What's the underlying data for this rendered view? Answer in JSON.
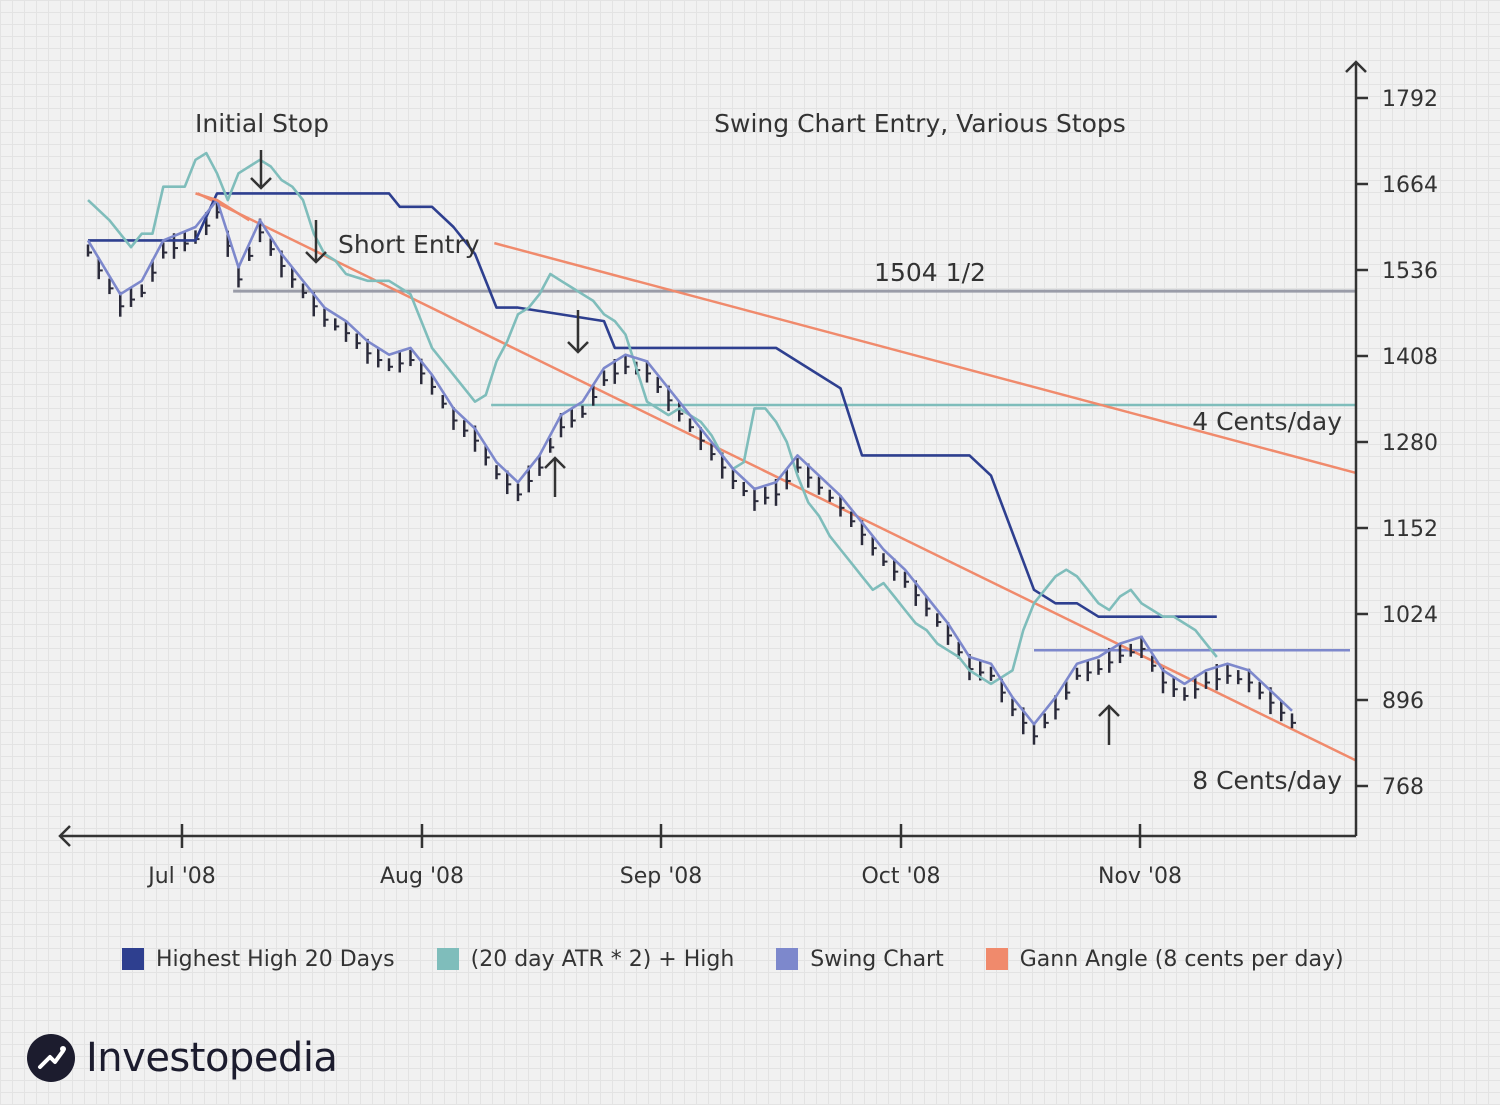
{
  "colors": {
    "highest_high": "#2e3f8f",
    "atr": "#7fbdbb",
    "swing": "#7d88cc",
    "gann": "#f08a6c",
    "price_bar": "#2a2a3a",
    "axis": "#333333",
    "reference_line": "#9a9ca8"
  },
  "chart_data": {
    "type": "line",
    "title": "Swing Chart Entry, Various Stops",
    "xlabel": "",
    "ylabel": "",
    "x_ticks": [
      "Jul '08",
      "Aug '08",
      "Sep '08",
      "Oct '08",
      "Nov '08"
    ],
    "y_ticks": [
      1792,
      1664,
      1536,
      1408,
      1280,
      1152,
      1024,
      896,
      768
    ],
    "ylim": [
      708,
      1860
    ],
    "x_unit": "trading days from start of plotted range",
    "legend_position": "bottom",
    "grid": true,
    "series": [
      {
        "name": "Highest High 20 Days",
        "color_key": "highest_high",
        "points": [
          [
            0,
            1580
          ],
          [
            10,
            1580
          ],
          [
            12,
            1650
          ],
          [
            28,
            1650
          ],
          [
            29,
            1630
          ],
          [
            32,
            1630
          ],
          [
            34,
            1600
          ],
          [
            36,
            1560
          ],
          [
            38,
            1480
          ],
          [
            40,
            1480
          ],
          [
            48,
            1460
          ],
          [
            49,
            1420
          ],
          [
            64,
            1420
          ],
          [
            66,
            1400
          ],
          [
            70,
            1360
          ],
          [
            72,
            1260
          ],
          [
            82,
            1260
          ],
          [
            84,
            1230
          ],
          [
            88,
            1060
          ],
          [
            90,
            1040
          ],
          [
            92,
            1040
          ],
          [
            94,
            1020
          ],
          [
            96,
            1020
          ],
          [
            105,
            1020
          ]
        ]
      },
      {
        "name": "(20 day ATR * 2) + High",
        "color_key": "atr",
        "points": [
          [
            0,
            1640
          ],
          [
            2,
            1610
          ],
          [
            4,
            1570
          ],
          [
            5,
            1590
          ],
          [
            6,
            1590
          ],
          [
            7,
            1660
          ],
          [
            9,
            1660
          ],
          [
            10,
            1700
          ],
          [
            11,
            1710
          ],
          [
            12,
            1680
          ],
          [
            13,
            1640
          ],
          [
            14,
            1680
          ],
          [
            16,
            1700
          ],
          [
            17,
            1690
          ],
          [
            18,
            1670
          ],
          [
            19,
            1660
          ],
          [
            20,
            1640
          ],
          [
            21,
            1590
          ],
          [
            22,
            1560
          ],
          [
            23,
            1550
          ],
          [
            24,
            1530
          ],
          [
            26,
            1520
          ],
          [
            28,
            1520
          ],
          [
            30,
            1500
          ],
          [
            31,
            1460
          ],
          [
            32,
            1420
          ],
          [
            33,
            1400
          ],
          [
            34,
            1380
          ],
          [
            35,
            1360
          ],
          [
            36,
            1340
          ],
          [
            37,
            1350
          ],
          [
            38,
            1400
          ],
          [
            39,
            1430
          ],
          [
            40,
            1470
          ],
          [
            41,
            1480
          ],
          [
            42,
            1500
          ],
          [
            43,
            1530
          ],
          [
            44,
            1520
          ],
          [
            45,
            1510
          ],
          [
            46,
            1500
          ],
          [
            47,
            1490
          ],
          [
            48,
            1470
          ],
          [
            49,
            1460
          ],
          [
            50,
            1440
          ],
          [
            51,
            1390
          ],
          [
            52,
            1340
          ],
          [
            53,
            1330
          ],
          [
            54,
            1320
          ],
          [
            55,
            1330
          ],
          [
            56,
            1320
          ],
          [
            57,
            1310
          ],
          [
            58,
            1290
          ],
          [
            59,
            1260
          ],
          [
            60,
            1240
          ],
          [
            61,
            1250
          ],
          [
            62,
            1330
          ],
          [
            63,
            1330
          ],
          [
            64,
            1310
          ],
          [
            65,
            1280
          ],
          [
            66,
            1230
          ],
          [
            67,
            1190
          ],
          [
            68,
            1170
          ],
          [
            69,
            1140
          ],
          [
            70,
            1120
          ],
          [
            71,
            1100
          ],
          [
            72,
            1080
          ],
          [
            73,
            1060
          ],
          [
            74,
            1070
          ],
          [
            75,
            1050
          ],
          [
            76,
            1030
          ],
          [
            77,
            1010
          ],
          [
            78,
            1000
          ],
          [
            79,
            980
          ],
          [
            80,
            970
          ],
          [
            81,
            960
          ],
          [
            82,
            940
          ],
          [
            83,
            930
          ],
          [
            84,
            920
          ],
          [
            85,
            930
          ],
          [
            86,
            940
          ],
          [
            87,
            1000
          ],
          [
            88,
            1040
          ],
          [
            89,
            1060
          ],
          [
            90,
            1080
          ],
          [
            91,
            1090
          ],
          [
            92,
            1080
          ],
          [
            93,
            1060
          ],
          [
            94,
            1040
          ],
          [
            95,
            1030
          ],
          [
            96,
            1050
          ],
          [
            97,
            1060
          ],
          [
            98,
            1040
          ],
          [
            99,
            1030
          ],
          [
            100,
            1020
          ],
          [
            101,
            1020
          ],
          [
            102,
            1010
          ],
          [
            103,
            1000
          ],
          [
            104,
            980
          ],
          [
            105,
            960
          ]
        ]
      },
      {
        "name": "Swing Chart",
        "color_key": "swing",
        "points": [
          [
            0,
            1580
          ],
          [
            3,
            1500
          ],
          [
            5,
            1520
          ],
          [
            7,
            1580
          ],
          [
            10,
            1600
          ],
          [
            12,
            1640
          ],
          [
            14,
            1540
          ],
          [
            16,
            1610
          ],
          [
            18,
            1560
          ],
          [
            20,
            1520
          ],
          [
            22,
            1480
          ],
          [
            24,
            1460
          ],
          [
            26,
            1430
          ],
          [
            28,
            1410
          ],
          [
            30,
            1420
          ],
          [
            32,
            1380
          ],
          [
            34,
            1330
          ],
          [
            36,
            1300
          ],
          [
            38,
            1250
          ],
          [
            40,
            1220
          ],
          [
            42,
            1260
          ],
          [
            44,
            1320
          ],
          [
            46,
            1340
          ],
          [
            48,
            1390
          ],
          [
            50,
            1410
          ],
          [
            52,
            1400
          ],
          [
            54,
            1360
          ],
          [
            56,
            1320
          ],
          [
            58,
            1280
          ],
          [
            60,
            1240
          ],
          [
            62,
            1210
          ],
          [
            64,
            1220
          ],
          [
            66,
            1260
          ],
          [
            68,
            1230
          ],
          [
            70,
            1200
          ],
          [
            72,
            1160
          ],
          [
            74,
            1120
          ],
          [
            76,
            1090
          ],
          [
            78,
            1050
          ],
          [
            80,
            1010
          ],
          [
            82,
            960
          ],
          [
            84,
            950
          ],
          [
            86,
            900
          ],
          [
            88,
            860
          ],
          [
            90,
            900
          ],
          [
            92,
            950
          ],
          [
            94,
            960
          ],
          [
            96,
            980
          ],
          [
            98,
            990
          ],
          [
            100,
            940
          ],
          [
            102,
            920
          ],
          [
            104,
            940
          ],
          [
            106,
            950
          ],
          [
            108,
            940
          ],
          [
            110,
            910
          ],
          [
            112,
            880
          ]
        ]
      },
      {
        "name": "Gann Angle (8 cents per day)",
        "color_key": "gann",
        "points": [
          [
            10,
            1650
          ],
          [
            12,
            1640
          ],
          [
            15,
            1610
          ]
        ]
      }
    ],
    "annotations": [
      {
        "label": "Initial Stop"
      },
      {
        "label": "Short Entry"
      },
      {
        "label": "1504 1/2",
        "y": 1504.5
      },
      {
        "label": "4 Cents/day"
      },
      {
        "label": "8 Cents/day"
      }
    ]
  },
  "legend": {
    "items": [
      {
        "label": "Highest High 20 Days",
        "color_key": "highest_high"
      },
      {
        "label": "(20 day ATR * 2) + High",
        "color_key": "atr"
      },
      {
        "label": "Swing Chart",
        "color_key": "swing"
      },
      {
        "label": "Gann Angle (8 cents per day)",
        "color_key": "gann"
      }
    ]
  },
  "brand": {
    "logo_text": "Investopedia",
    "logo_icon": "investopedia-logo-icon"
  }
}
